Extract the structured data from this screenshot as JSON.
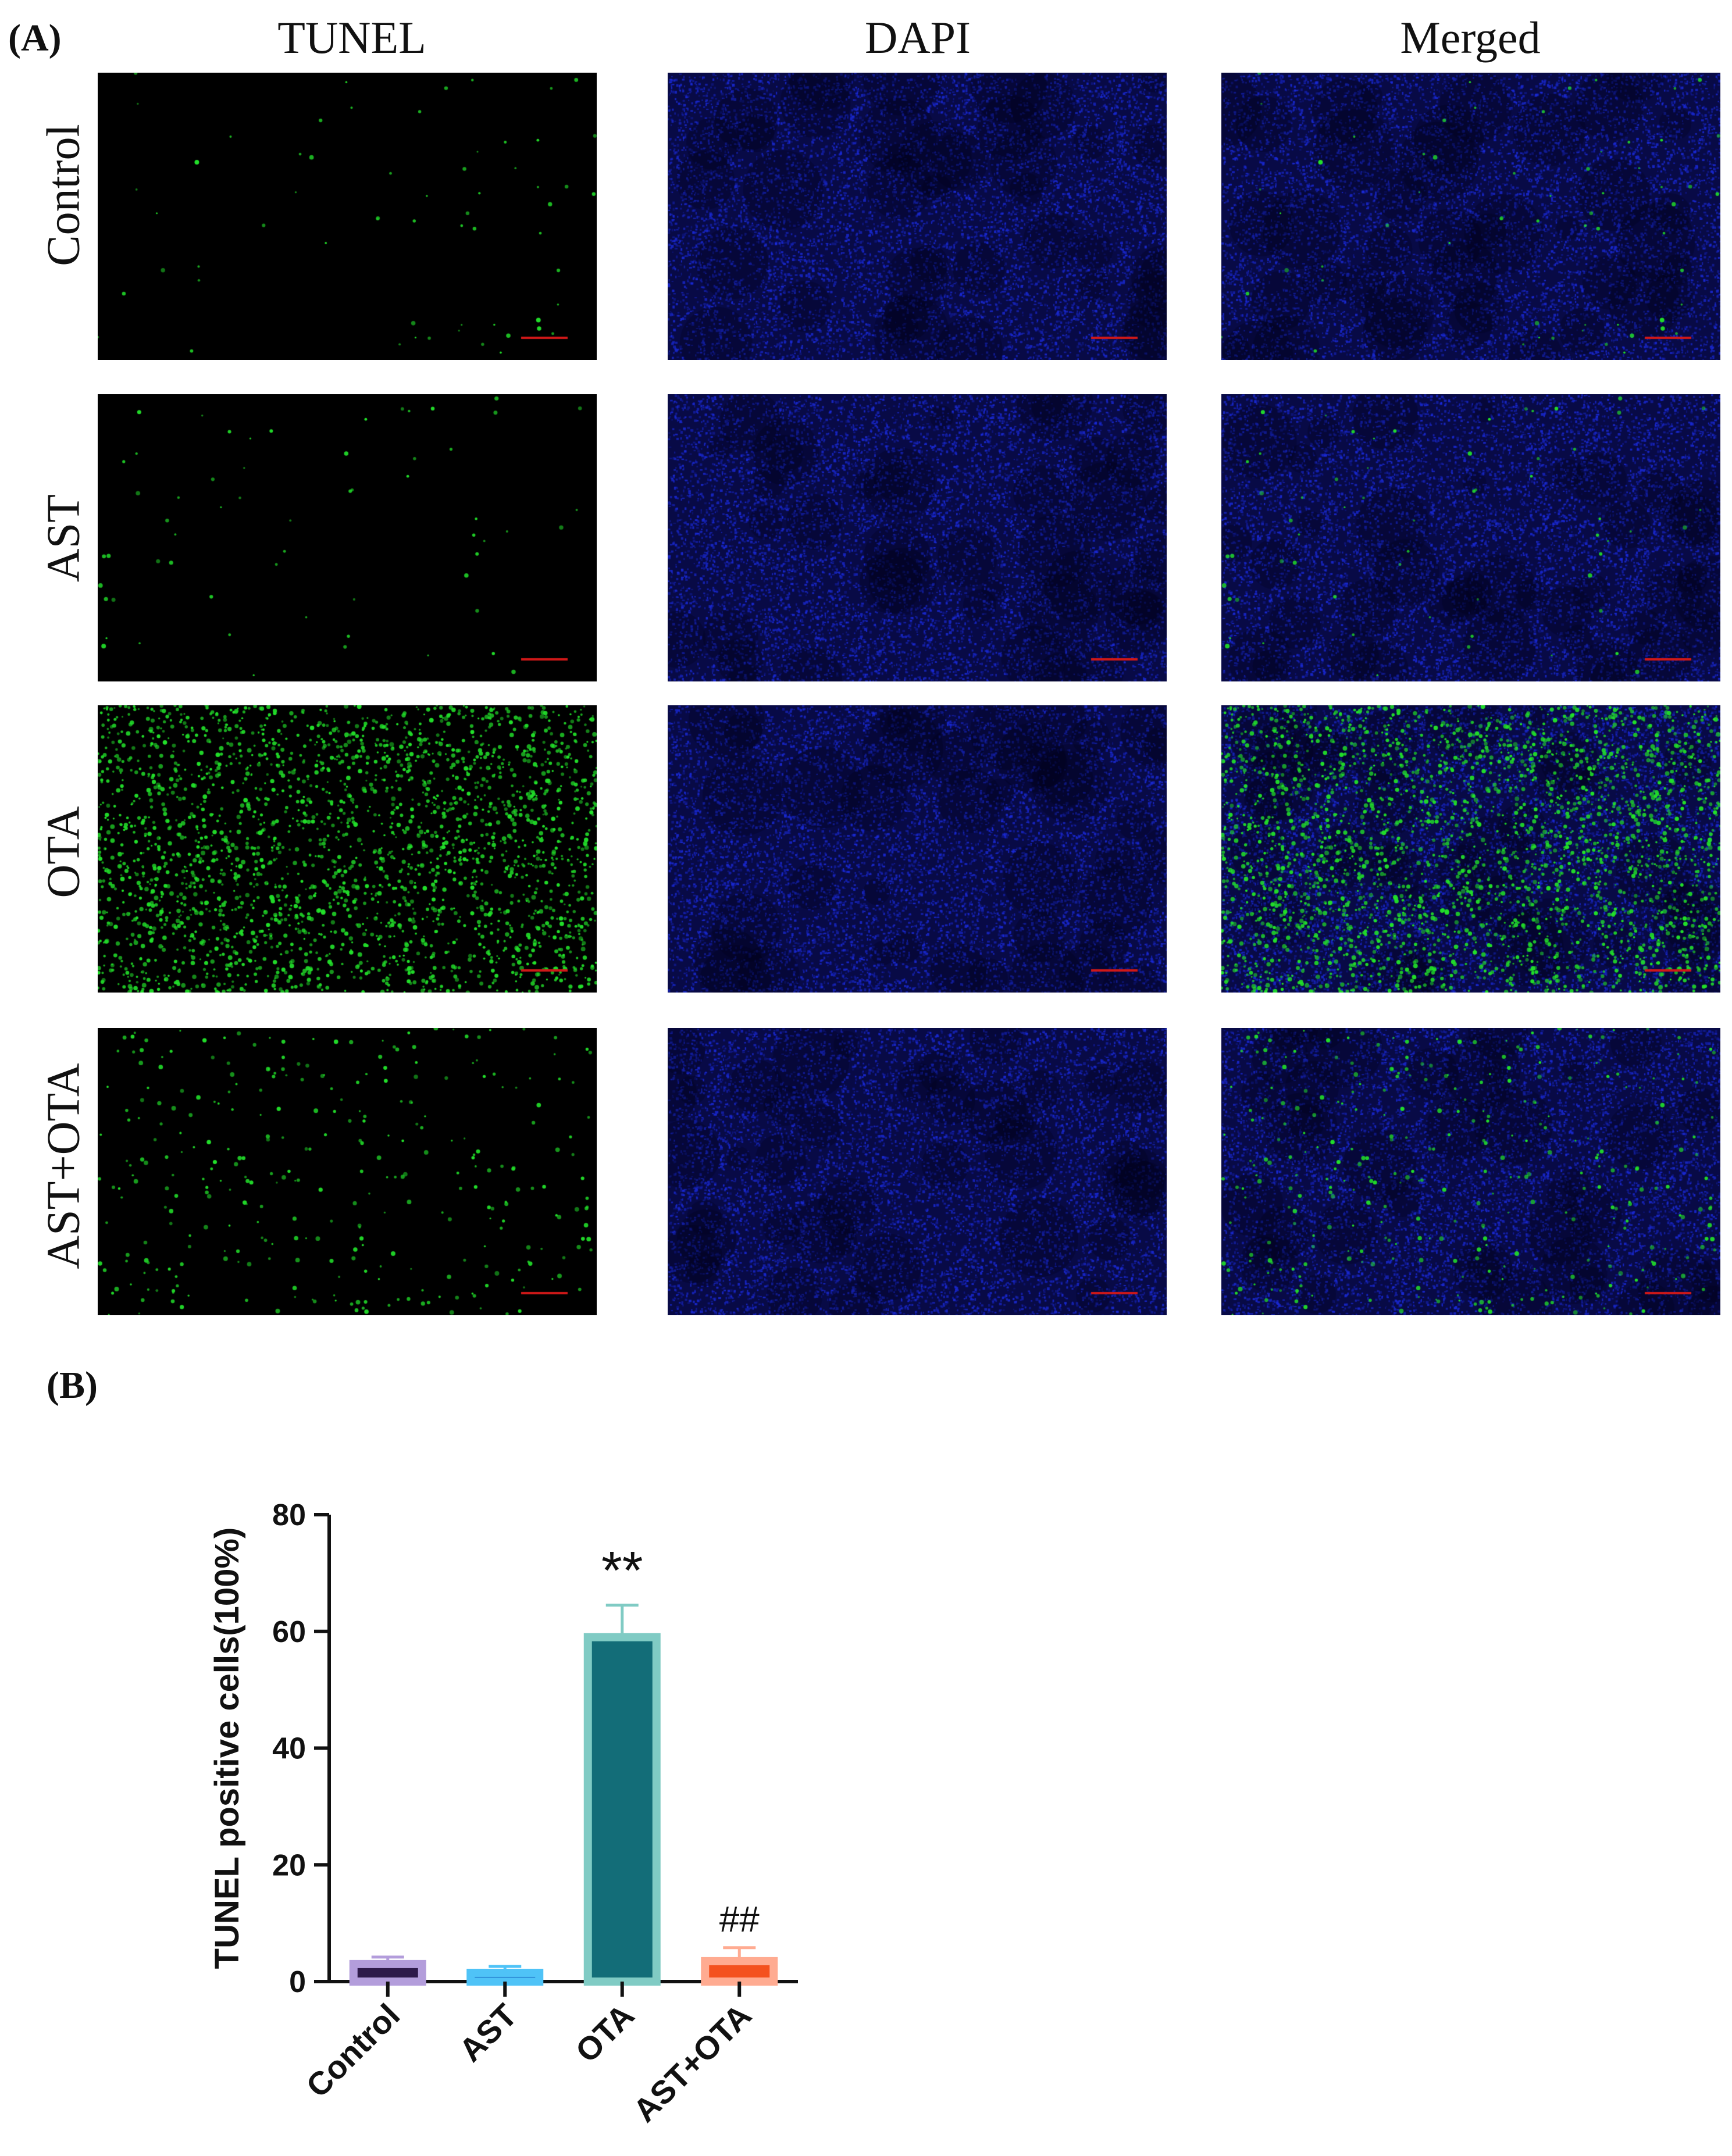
{
  "figure": {
    "panel_a_label": "(A)",
    "panel_b_label": "(B)",
    "columns": [
      "TUNEL",
      "DAPI",
      "Merged"
    ],
    "rows": [
      "Control",
      "AST",
      "OTA",
      "AST+OTA"
    ],
    "channel_colors": {
      "tunel": "#22e02a",
      "dapi": "#1a2ad8"
    },
    "tunel_density_by_row": {
      "Control": "sparse",
      "AST": "sparse",
      "OTA": "dense",
      "AST+OTA": "moderate"
    }
  },
  "chart_data": {
    "type": "bar",
    "categories": [
      "Control",
      "AST",
      "OTA",
      "AST+OTA"
    ],
    "values": [
      3.0,
      1.5,
      59.0,
      3.5
    ],
    "error_upper": [
      4.2,
      2.6,
      64.5,
      5.8
    ],
    "ylabel": "TUNEL positive cells(100%)",
    "xlabel": "",
    "ylim": [
      0,
      80
    ],
    "yticks": [
      0,
      20,
      40,
      60,
      80
    ],
    "annotations": [
      "",
      "",
      "**",
      "##"
    ],
    "bar_fill_colors": [
      "#2e1a4a",
      "#1565c0",
      "#136d78",
      "#f4511e"
    ],
    "bar_edge_colors": [
      "#b39ddb",
      "#4fc3f7",
      "#80cbc4",
      "#ffab91"
    ]
  }
}
